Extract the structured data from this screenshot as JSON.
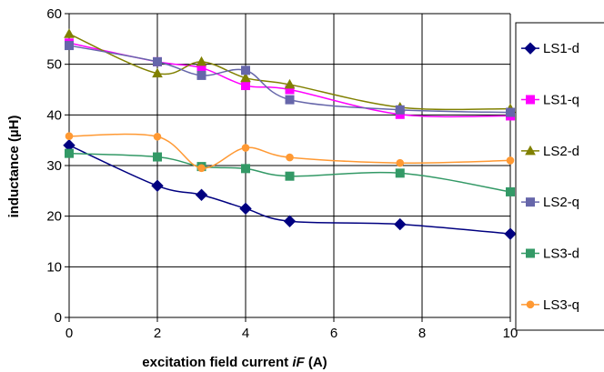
{
  "chart_data": {
    "type": "line",
    "title": "",
    "xlabel_parts": [
      "excitation field current ",
      "iF",
      " (A)"
    ],
    "ylabel": "inductance (µH)",
    "xlim": [
      0,
      10
    ],
    "ylim": [
      0,
      60
    ],
    "x_ticks": [
      "0",
      "2",
      "4",
      "6",
      "8",
      "10"
    ],
    "y_ticks": [
      "0",
      "10",
      "20",
      "30",
      "40",
      "50",
      "60"
    ],
    "grid": true,
    "legend_position": "right",
    "series": [
      {
        "name": "LS1-d",
        "color": "#000080",
        "marker": "diamond",
        "x": [
          0,
          2,
          3,
          4,
          5,
          7.5,
          10
        ],
        "y": [
          34,
          26,
          24.2,
          21.5,
          19,
          18.4,
          16.5
        ]
      },
      {
        "name": "LS1-q",
        "color": "#FF00FF",
        "marker": "square",
        "x": [
          0,
          2,
          3,
          4,
          5,
          7.5,
          10
        ],
        "y": [
          54.2,
          50.5,
          49.3,
          45.8,
          45,
          40.1,
          39.8
        ]
      },
      {
        "name": "LS2-d",
        "color": "#808000",
        "marker": "triangle",
        "x": [
          0,
          2,
          3,
          4,
          5,
          7.5,
          10
        ],
        "y": [
          56,
          48.2,
          50.5,
          47.3,
          46,
          41.5,
          41.2
        ]
      },
      {
        "name": "LS2-q",
        "color": "#6666AA",
        "marker": "square",
        "x": [
          0,
          2,
          3,
          4,
          5,
          7.5,
          10
        ],
        "y": [
          53.7,
          50.5,
          47.8,
          48.8,
          43,
          41,
          40.5
        ]
      },
      {
        "name": "LS3-d",
        "color": "#339966",
        "marker": "square",
        "x": [
          0,
          2,
          3,
          4,
          5,
          7.5,
          10
        ],
        "y": [
          32.4,
          31.7,
          29.8,
          29.4,
          27.9,
          28.5,
          24.8
        ]
      },
      {
        "name": "LS3-q",
        "color": "#FF9933",
        "marker": "circle",
        "x": [
          0,
          2,
          3,
          4,
          5,
          7.5,
          10
        ],
        "y": [
          35.8,
          35.7,
          29.5,
          33.5,
          31.6,
          30.5,
          31
        ]
      }
    ]
  }
}
